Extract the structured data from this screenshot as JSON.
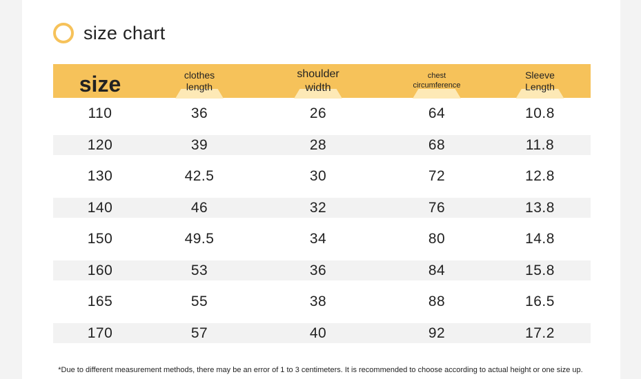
{
  "title": "size chart",
  "colors": {
    "accent": "#f6c25a",
    "alt_row": "#f2f2f2"
  },
  "headers": [
    {
      "lines": [
        "size"
      ]
    },
    {
      "lines": [
        "clothes",
        "length"
      ]
    },
    {
      "lines": [
        "shoulder",
        "width"
      ]
    },
    {
      "lines": [
        "chest",
        "circumference"
      ]
    },
    {
      "lines": [
        "Sleeve",
        "Length"
      ]
    }
  ],
  "rows": [
    [
      "110",
      "36",
      "26",
      "64",
      "10.8"
    ],
    [
      "120",
      "39",
      "28",
      "68",
      "11.8"
    ],
    [
      "130",
      "42.5",
      "30",
      "72",
      "12.8"
    ],
    [
      "140",
      "46",
      "32",
      "76",
      "13.8"
    ],
    [
      "150",
      "49.5",
      "34",
      "80",
      "14.8"
    ],
    [
      "160",
      "53",
      "36",
      "84",
      "15.8"
    ],
    [
      "165",
      "55",
      "38",
      "88",
      "16.5"
    ],
    [
      "170",
      "57",
      "40",
      "92",
      "17.2"
    ]
  ],
  "note": "*Due to different measurement methods, there may be an error of 1 to 3 centimeters. It is recommended to choose according to actual height or one size up."
}
